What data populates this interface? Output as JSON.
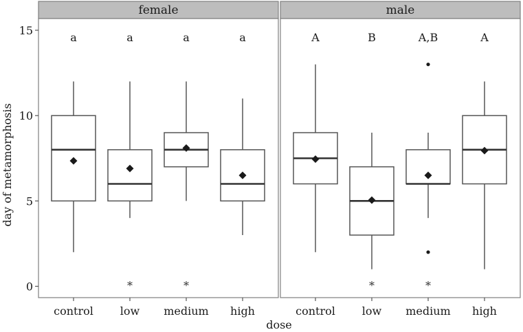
{
  "chart_data": {
    "type": "boxplot",
    "xlabel": "dose",
    "ylabel": "day of metamorphosis",
    "ylim": [
      0,
      15.9
    ],
    "yticks": [
      0,
      5,
      10,
      15
    ],
    "categories": [
      "control",
      "low",
      "medium",
      "high"
    ],
    "grid": false,
    "panels": [
      {
        "name": "female",
        "groups": [
          {
            "category": "control",
            "min": 2,
            "q1": 5,
            "median": 8,
            "q3": 10,
            "max": 12,
            "mean": 7.35,
            "outliers": [],
            "letter": "a",
            "star": ""
          },
          {
            "category": "low",
            "min": 4,
            "q1": 5,
            "median": 6,
            "q3": 8,
            "max": 12,
            "mean": 6.9,
            "outliers": [],
            "letter": "a",
            "star": "*"
          },
          {
            "category": "medium",
            "min": 5,
            "q1": 7,
            "median": 8,
            "q3": 9,
            "max": 12,
            "mean": 8.1,
            "outliers": [],
            "letter": "a",
            "star": "*"
          },
          {
            "category": "high",
            "min": 3,
            "q1": 5,
            "median": 6,
            "q3": 8,
            "max": 11,
            "mean": 6.5,
            "outliers": [],
            "letter": "a",
            "star": ""
          }
        ]
      },
      {
        "name": "male",
        "groups": [
          {
            "category": "control",
            "min": 2,
            "q1": 6,
            "median": 7.5,
            "q3": 9,
            "max": 13,
            "mean": 7.45,
            "outliers": [],
            "letter": "A",
            "star": ""
          },
          {
            "category": "low",
            "min": 1,
            "q1": 3,
            "median": 5,
            "q3": 7,
            "max": 9,
            "mean": 5.05,
            "outliers": [],
            "letter": "B",
            "star": "*"
          },
          {
            "category": "medium",
            "min": 4,
            "q1": 6,
            "median": 6,
            "q3": 8,
            "max": 9,
            "mean": 6.5,
            "outliers": [
              13,
              2
            ],
            "letter": "A,B",
            "star": "*"
          },
          {
            "category": "high",
            "min": 1,
            "q1": 6,
            "median": 8,
            "q3": 10,
            "max": 12,
            "mean": 7.95,
            "outliers": [],
            "letter": "A",
            "star": ""
          }
        ]
      }
    ]
  }
}
